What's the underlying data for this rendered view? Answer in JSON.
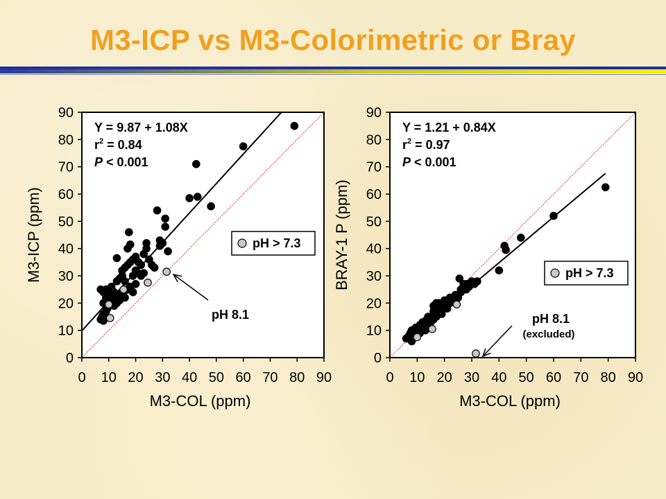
{
  "title": "M3-ICP vs M3-Colorimetric or Bray",
  "colors": {
    "title": "#f0a020",
    "rule_top": "#1c2fa0",
    "rule_gradient_start": "#2a3c96",
    "rule_gradient_end": "#f5f012",
    "point_fill": "#000000",
    "special_point_fill": "#c8c8c8",
    "identity_line": "#e03030",
    "fit_line": "#000000"
  },
  "chart_data": [
    {
      "type": "scatter",
      "xlabel": "M3-COL (ppm)",
      "ylabel": "M3-ICP (ppm)",
      "xlim": [
        0,
        90
      ],
      "ylim": [
        0,
        90
      ],
      "xticks": [
        0,
        10,
        20,
        30,
        40,
        50,
        60,
        70,
        80,
        90
      ],
      "yticks": [
        0,
        10,
        20,
        30,
        40,
        50,
        60,
        70,
        80,
        90
      ],
      "grid": false,
      "identity_line": true,
      "fit_line": {
        "intercept": 9.87,
        "slope": 1.08
      },
      "stats": {
        "eq": "Y = 9.87 + 1.08X",
        "r2_label": "r",
        "r2_sup": "2",
        "r2_value": " = 0.84",
        "p_label": "P",
        "p_value": " < 0.001"
      },
      "legend": {
        "label": "pH > 7.3",
        "position": "middle-right"
      },
      "annotation": {
        "text": "pH 8.1",
        "subtext": "",
        "target": [
          31.5,
          31.5
        ]
      },
      "series": [
        {
          "marker": "black",
          "points": [
            [
              7,
              14
            ],
            [
              7.5,
              15
            ],
            [
              8,
              13.5
            ],
            [
              8,
              16
            ],
            [
              9,
              17
            ],
            [
              9.5,
              18
            ],
            [
              10,
              19
            ],
            [
              10.5,
              20
            ],
            [
              11,
              21
            ],
            [
              11.5,
              22
            ],
            [
              12,
              19
            ],
            [
              12.5,
              23
            ],
            [
              13,
              20
            ],
            [
              13.5,
              22
            ],
            [
              14,
              21
            ],
            [
              15,
              23
            ],
            [
              15.5,
              24
            ],
            [
              16,
              22
            ],
            [
              17,
              25
            ],
            [
              18,
              26
            ],
            [
              7,
              25
            ],
            [
              8,
              24
            ],
            [
              9,
              25
            ],
            [
              10,
              23
            ],
            [
              11,
              22
            ],
            [
              12,
              24
            ],
            [
              13,
              28
            ],
            [
              14,
              29
            ],
            [
              15,
              32
            ],
            [
              16,
              33
            ],
            [
              17,
              34
            ],
            [
              18,
              35
            ],
            [
              19,
              36
            ],
            [
              20,
              37
            ],
            [
              21,
              35
            ],
            [
              22,
              34
            ],
            [
              23,
              38
            ],
            [
              24,
              40
            ],
            [
              25,
              36
            ],
            [
              26,
              34
            ],
            [
              13,
              36.5
            ],
            [
              17,
              40
            ],
            [
              18,
              41.5
            ],
            [
              17.5,
              46
            ],
            [
              19,
              30
            ],
            [
              20,
              32
            ],
            [
              21,
              31
            ],
            [
              22,
              30
            ],
            [
              24,
              42
            ],
            [
              28,
              54
            ],
            [
              29,
              43
            ],
            [
              30,
              42
            ],
            [
              31,
              48
            ],
            [
              31,
              51
            ],
            [
              32,
              39
            ],
            [
              40,
              58.5
            ],
            [
              43,
              59
            ],
            [
              42.5,
              71
            ],
            [
              48,
              55.5
            ],
            [
              60,
              77.5
            ],
            [
              79,
              85
            ],
            [
              8,
              20
            ],
            [
              9,
              22
            ],
            [
              10,
              24
            ],
            [
              11,
              26
            ],
            [
              12,
              21
            ],
            [
              14,
              23
            ],
            [
              15,
              30
            ],
            [
              16,
              28
            ],
            [
              19,
              24
            ],
            [
              20,
              27
            ],
            [
              23,
              31
            ],
            [
              27,
              33
            ],
            [
              29,
              41
            ]
          ]
        },
        {
          "marker": "gray",
          "points": [
            [
              10,
              19.5
            ],
            [
              10.5,
              14.5
            ],
            [
              15.5,
              25
            ],
            [
              24.5,
              27.5
            ],
            [
              31.5,
              31.5
            ]
          ]
        }
      ]
    },
    {
      "type": "scatter",
      "xlabel": "M3-COL (ppm)",
      "ylabel": "BRAY-1 P (ppm)",
      "xlim": [
        0,
        90
      ],
      "ylim": [
        0,
        90
      ],
      "xticks": [
        0,
        10,
        20,
        30,
        40,
        50,
        60,
        70,
        80,
        90
      ],
      "yticks": [
        0,
        10,
        20,
        30,
        40,
        50,
        60,
        70,
        80,
        90
      ],
      "grid": false,
      "identity_line": true,
      "fit_line": {
        "intercept": 1.21,
        "slope": 0.84
      },
      "stats": {
        "eq": "Y = 1.21 + 0.84X",
        "r2_label": "r",
        "r2_sup": "2",
        "r2_value": " = 0.97",
        "p_label": "P",
        "p_value": " < 0.001"
      },
      "legend": {
        "label": "pH > 7.3",
        "position": "middle-right"
      },
      "annotation": {
        "text": "pH 8.1",
        "subtext": "(excluded)",
        "target": [
          31.5,
          1.5
        ]
      },
      "series": [
        {
          "marker": "black",
          "points": [
            [
              6,
              7
            ],
            [
              7,
              8
            ],
            [
              7.5,
              9
            ],
            [
              8,
              6
            ],
            [
              8,
              10
            ],
            [
              9,
              9
            ],
            [
              9.5,
              11
            ],
            [
              10,
              8
            ],
            [
              10.5,
              10
            ],
            [
              11,
              12
            ],
            [
              12,
              11
            ],
            [
              12.5,
              13
            ],
            [
              13,
              12
            ],
            [
              13.5,
              14
            ],
            [
              14,
              12
            ],
            [
              15,
              13
            ],
            [
              15.5,
              15
            ],
            [
              16,
              14
            ],
            [
              17,
              15
            ],
            [
              18,
              17
            ],
            [
              16,
              19
            ],
            [
              17,
              18
            ],
            [
              18,
              20
            ],
            [
              19,
              19
            ],
            [
              20,
              21
            ],
            [
              21,
              20
            ],
            [
              22,
              22
            ],
            [
              23,
              21
            ],
            [
              24,
              23
            ],
            [
              25,
              22
            ],
            [
              26,
              25
            ],
            [
              27,
              26
            ],
            [
              28,
              27
            ],
            [
              29,
              26
            ],
            [
              30,
              28
            ],
            [
              31,
              27
            ],
            [
              32,
              28
            ],
            [
              25.5,
              29
            ],
            [
              40,
              32
            ],
            [
              42,
              41
            ],
            [
              42.5,
              39.5
            ],
            [
              48,
              44
            ],
            [
              60,
              52
            ],
            [
              79,
              62.5
            ],
            [
              12,
              13
            ],
            [
              14,
              15
            ],
            [
              16,
              17
            ],
            [
              18,
              18
            ],
            [
              20,
              19
            ],
            [
              22,
              20
            ],
            [
              24,
              21
            ],
            [
              26,
              24
            ],
            [
              28,
              25
            ],
            [
              13,
              10
            ],
            [
              11,
              9
            ],
            [
              19,
              16
            ],
            [
              17,
              20
            ],
            [
              21,
              18
            ],
            [
              23,
              22
            ],
            [
              27,
              27
            ]
          ]
        },
        {
          "marker": "gray",
          "points": [
            [
              10,
              7.5
            ],
            [
              15.5,
              10.5
            ],
            [
              24.5,
              19.5
            ],
            [
              31.5,
              1.5
            ]
          ]
        }
      ]
    }
  ]
}
